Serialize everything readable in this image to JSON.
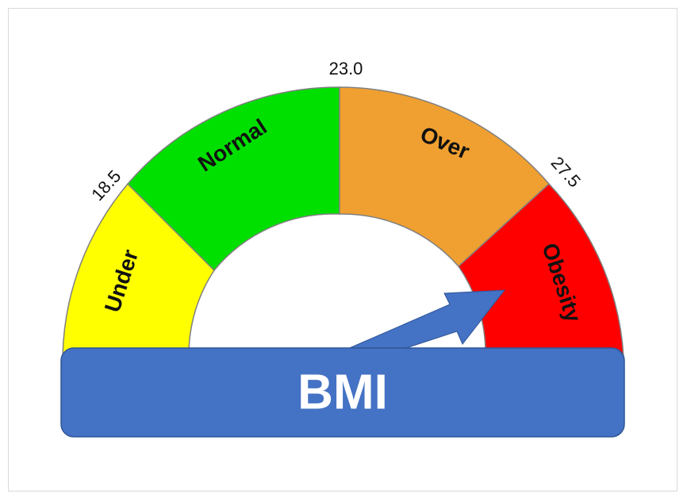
{
  "gauge": {
    "title": "BMI",
    "segments": [
      {
        "label": "Under",
        "color": "#ffff00"
      },
      {
        "label": "Normal",
        "color": "#00e000"
      },
      {
        "label": "Over",
        "color": "#f0a030"
      },
      {
        "label": "Obesity",
        "color": "#ff0000"
      }
    ],
    "ticks": [
      "18.5",
      "23.0",
      "27.5"
    ],
    "banner_color": "#4472c4",
    "needle_color": "#4472c4"
  }
}
